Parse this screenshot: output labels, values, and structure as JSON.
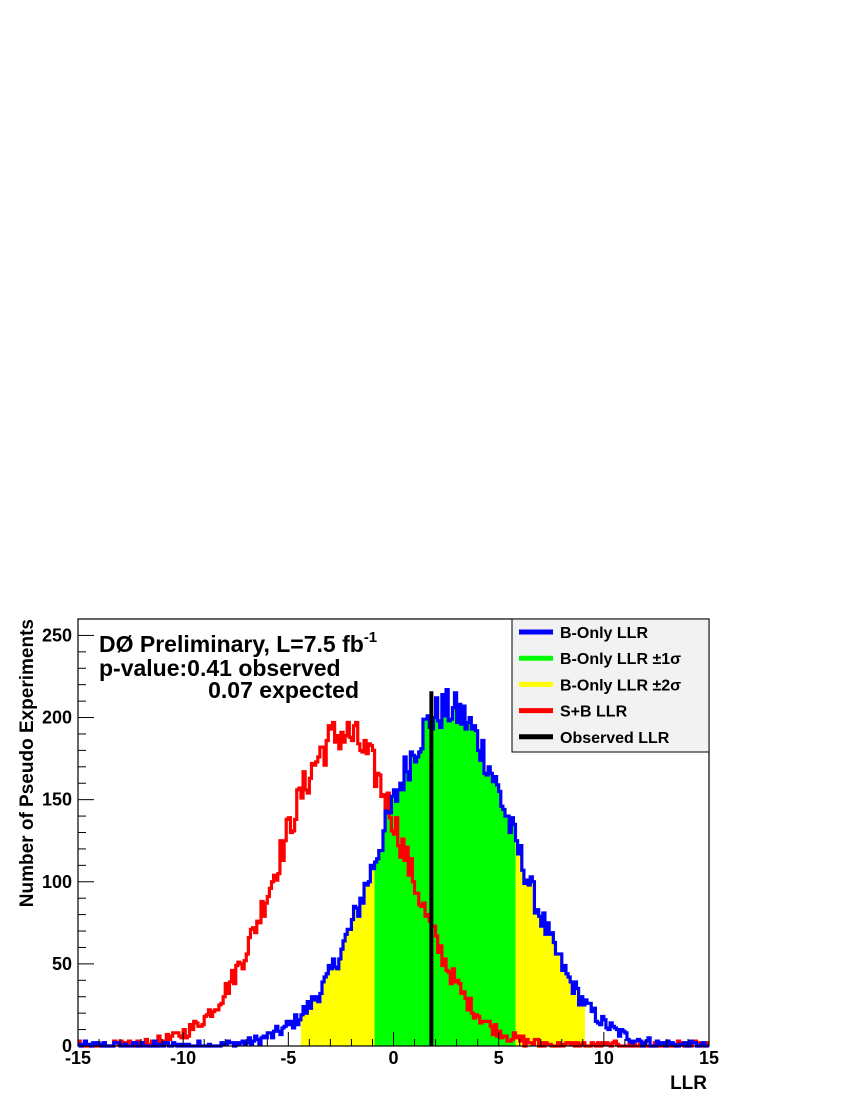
{
  "chart_data": {
    "type": "histogram",
    "annotations": {
      "line1_main": "DØ Preliminary, L=7.5 fb",
      "line1_sup": "-1",
      "line2": "p-value:0.41 observed",
      "line3": "0.07 expected"
    },
    "xlabel": "LLR",
    "ylabel": "Number of Pseudo Experiments",
    "xlim": [
      -15,
      15
    ],
    "ylim": [
      0,
      260
    ],
    "x_ticks": [
      -15,
      -10,
      -5,
      0,
      5,
      10,
      15
    ],
    "x_tick_labels": [
      "-15",
      "-10",
      "-5",
      "0",
      "5",
      "10",
      "15"
    ],
    "y_ticks": [
      0,
      50,
      100,
      150,
      200,
      250
    ],
    "y_tick_labels": [
      "0",
      "50",
      "100",
      "150",
      "200",
      "250"
    ],
    "legend": {
      "placement": "top-right",
      "entries": [
        {
          "name": "B-Only LLR",
          "color": "#0000ff"
        },
        {
          "name": "B-Only LLR ±1σ",
          "color": "#00ff00"
        },
        {
          "name": "B-Only LLR ±2σ",
          "color": "#ffff00"
        },
        {
          "name": "S+B LLR",
          "color": "#ff0000"
        },
        {
          "name": "Observed LLR",
          "color": "#000000"
        }
      ]
    },
    "observed_llr": 1.8,
    "observed_line_height": 216,
    "bands": {
      "one_sigma": [
        -0.9,
        5.8
      ],
      "two_sigma": [
        -4.4,
        9.1
      ]
    },
    "series": [
      {
        "name": "B-Only LLR",
        "distribution": "gaussian",
        "mean": 2.6,
        "sigma": 3.2,
        "peak": 205,
        "noise": 12
      },
      {
        "name": "S+B LLR",
        "distribution": "gaussian",
        "mean": -2.4,
        "sigma": 3.0,
        "peak": 190,
        "noise": 12
      }
    ],
    "bin_width": 0.1,
    "grid": false
  }
}
